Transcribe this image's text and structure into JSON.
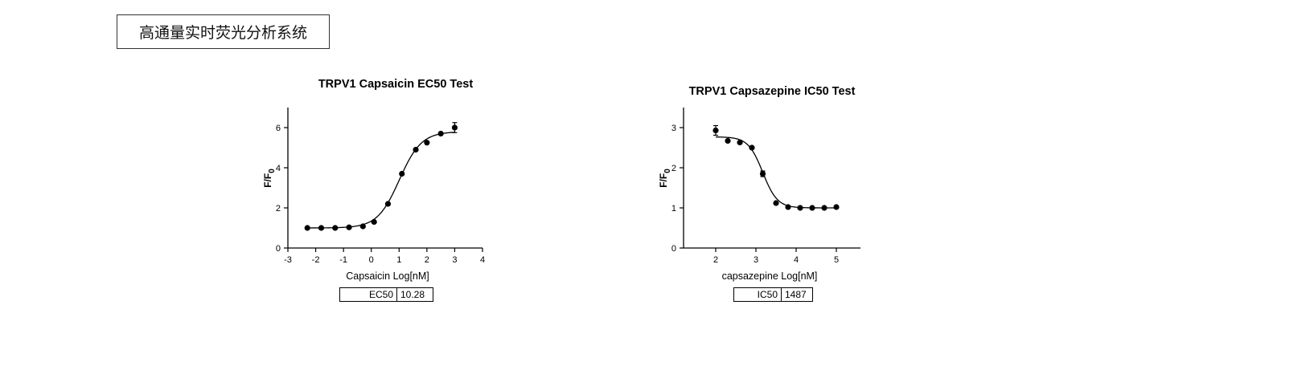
{
  "header": {
    "title": "高通量实时荧光分析系统"
  },
  "chart_data": [
    {
      "type": "scatter",
      "title": "TRPV1 Capsaicin EC50 Test",
      "xlabel": "Capsaicin  Log[nM]",
      "ylabel": "F/F",
      "ylabel_sub": "0",
      "xlim": [
        -3,
        4
      ],
      "ylim": [
        0,
        7
      ],
      "xticks": [
        -3,
        -2,
        -1,
        0,
        1,
        2,
        3,
        4
      ],
      "yticks": [
        0,
        2,
        4,
        6
      ],
      "fit": {
        "model": "sigmoid",
        "bottom": 1.0,
        "top": 5.8,
        "logec50": 1.01,
        "hill": 1.1
      },
      "series": [
        {
          "x": [
            -2.3,
            -1.8,
            -1.3,
            -0.8,
            -0.3,
            0.1,
            0.6,
            1.1,
            1.6,
            2.0,
            2.5,
            3.0
          ],
          "y": [
            1.0,
            1.0,
            1.0,
            1.03,
            1.08,
            1.3,
            2.2,
            3.7,
            4.9,
            5.25,
            5.7,
            6.0
          ],
          "err": [
            0,
            0,
            0,
            0,
            0,
            0,
            0,
            0,
            0,
            0,
            0,
            0.25
          ]
        }
      ],
      "params": {
        "name": "EC50",
        "value": "10.28"
      }
    },
    {
      "type": "scatter",
      "title": "TRPV1 Capsazepine IC50 Test",
      "xlabel": "capsazepine  Log[nM]",
      "ylabel": "F/F",
      "ylabel_sub": "0",
      "xlim": [
        1.2,
        5.6
      ],
      "ylim": [
        0,
        3.5
      ],
      "xticks": [
        2,
        3,
        4,
        5
      ],
      "yticks": [
        0,
        1,
        2,
        3
      ],
      "fit": {
        "model": "sigmoid",
        "bottom": 1.0,
        "top": 2.77,
        "logec50": 3.17,
        "hill": -2.4
      },
      "series": [
        {
          "x": [
            2.0,
            2.3,
            2.6,
            2.9,
            3.17,
            3.5,
            3.8,
            4.1,
            4.4,
            4.7,
            5.0
          ],
          "y": [
            2.93,
            2.67,
            2.63,
            2.5,
            1.85,
            1.12,
            1.02,
            1.0,
            1.0,
            1.0,
            1.02
          ],
          "err": [
            0.12,
            0,
            0,
            0,
            0.07,
            0,
            0,
            0,
            0,
            0,
            0.03
          ]
        }
      ],
      "params": {
        "name": "IC50",
        "value": "1487"
      }
    }
  ]
}
